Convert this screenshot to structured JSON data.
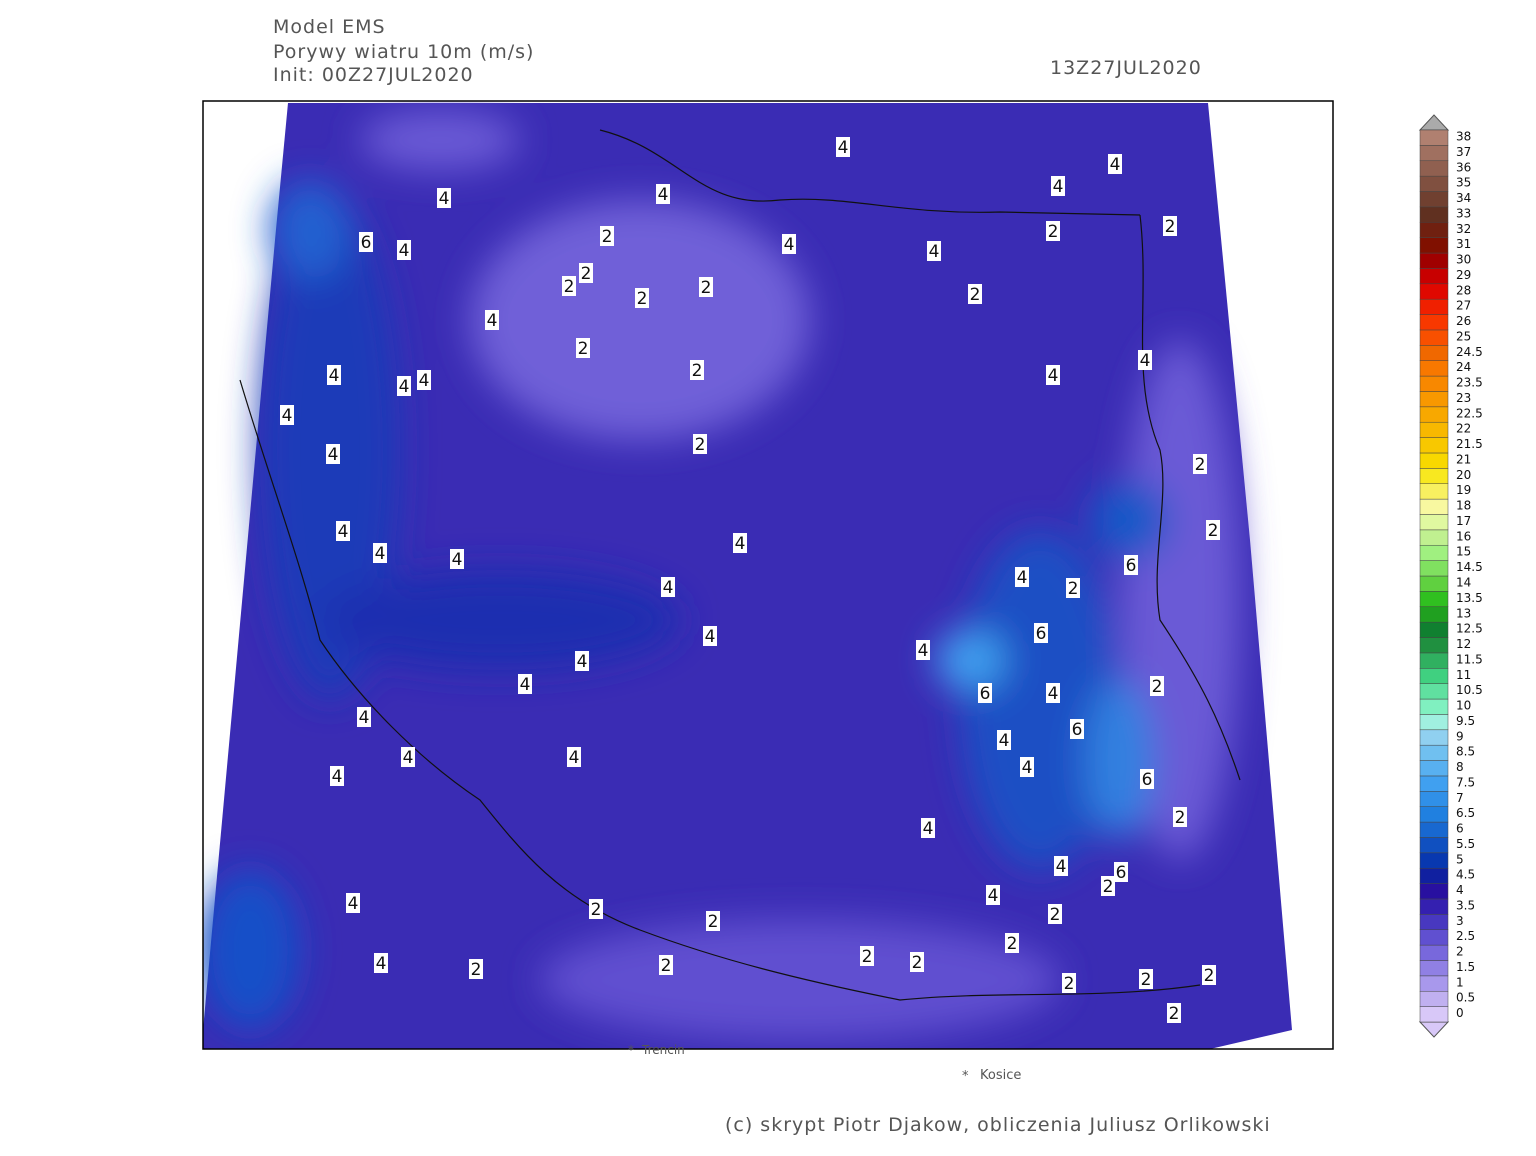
{
  "header": {
    "model": "Model EMS",
    "variable": "Porywy wiatru 10m (m/s)",
    "init": "Init: 00Z27JUL2020",
    "valid": "13Z27JUL2020"
  },
  "map": {
    "contour_labels": [
      4,
      4,
      4,
      2,
      6,
      4,
      2,
      2,
      2,
      2,
      4,
      4,
      2,
      4,
      4,
      2,
      2,
      4,
      2,
      2,
      4,
      4,
      4,
      4,
      4,
      4,
      2,
      4,
      2,
      2,
      4,
      4,
      4,
      4,
      4,
      4,
      2,
      6,
      4,
      4,
      4,
      4,
      6,
      6,
      4,
      2,
      4,
      4,
      4,
      4,
      6,
      4,
      6,
      4,
      2,
      4,
      4,
      6,
      2,
      4,
      4,
      2,
      2,
      2,
      2,
      4,
      2,
      2,
      2,
      2,
      2,
      2,
      2,
      2
    ],
    "cities": [
      "Trencin",
      "Kosice"
    ]
  },
  "colorbar": {
    "levels": [
      0,
      0.5,
      1,
      1.5,
      2,
      2.5,
      3,
      3.5,
      4,
      4.5,
      5,
      5.5,
      6,
      6.5,
      7,
      7.5,
      8,
      8.5,
      9,
      9.5,
      10,
      10.5,
      11,
      11.5,
      12,
      12.5,
      13,
      13.5,
      14,
      14.5,
      15,
      16,
      17,
      18,
      19,
      20,
      21,
      21.5,
      22,
      22.5,
      23,
      23.5,
      24,
      24.5,
      25,
      26,
      27,
      28,
      29,
      30,
      31,
      32,
      33,
      34,
      35,
      36,
      37,
      38
    ],
    "colors": [
      "#d8c8f8",
      "#c0b0f0",
      "#a898ec",
      "#9080e4",
      "#7868dc",
      "#6050d0",
      "#4838c0",
      "#3420b0",
      "#2810a0",
      "#1020a0",
      "#0838b0",
      "#1050c0",
      "#1868d0",
      "#2080e0",
      "#3090e8",
      "#40a0f0",
      "#58b0f0",
      "#70c0f0",
      "#90d0f0",
      "#a0f0e0",
      "#80f0c0",
      "#60e0a0",
      "#40d080",
      "#30b060",
      "#209040",
      "#108030",
      "#20a020",
      "#30c020",
      "#60d040",
      "#80e060",
      "#a0f080",
      "#c0f090",
      "#e0f8a0",
      "#f8f8a0",
      "#f8f060",
      "#f8e820",
      "#f8d800",
      "#f8c800",
      "#f8b800",
      "#f8a800",
      "#f89800",
      "#f88800",
      "#f87800",
      "#f06800",
      "#f85000",
      "#f83800",
      "#f02000",
      "#e00800",
      "#c80000",
      "#a00000",
      "#801000",
      "#702010",
      "#603020",
      "#704030",
      "#805040",
      "#906050",
      "#a07060",
      "#b08070"
    ]
  },
  "footer": "(c) skrypt Piotr Djakow, obliczenia Juliusz Orlikowski"
}
